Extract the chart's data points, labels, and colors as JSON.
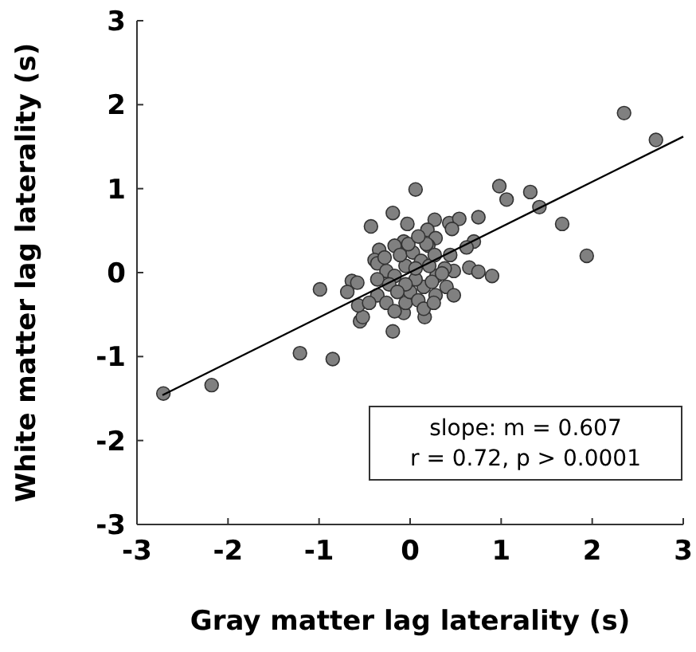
{
  "chart_data": {
    "type": "scatter",
    "xlabel": "Gray matter lag laterality (s)",
    "ylabel": "White matter lag laterality (s)",
    "xlim": [
      -3,
      3
    ],
    "xticks": [
      -3,
      -2,
      -1,
      0,
      1,
      2,
      3
    ],
    "ylim": [
      -3,
      3
    ],
    "yticks": [
      -3,
      -2,
      -1,
      0,
      1,
      2,
      3
    ],
    "grid": false,
    "marker": "circle",
    "annotations": [
      "slope: m = 0.607",
      "r = 0.72, p > 0.0001"
    ],
    "series": [
      {
        "color": "#808080",
        "x": [
          0.06,
          0.98,
          1.06,
          1.32,
          1.42,
          1.67,
          1.94,
          -0.43,
          -0.19,
          -0.03,
          0.27,
          0.43,
          0.54,
          0.75,
          0.46,
          0.19,
          0.28,
          0.2,
          -0.07,
          -0.17,
          -0.34,
          -0.39,
          0.7,
          0.62,
          0.44,
          0.65,
          0.75,
          0.9,
          0.48,
          0.38,
          0.29,
          0.4,
          0.48,
          0.28,
          0.16,
          -0.07,
          -0.19,
          -0.55,
          -0.52,
          -0.57,
          -0.64,
          -0.58,
          -0.69,
          -0.99,
          -1.21,
          -0.85,
          -2.71,
          -2.18,
          2.35,
          2.7,
          -0.36,
          -0.26,
          -0.17,
          -0.36,
          -0.23,
          -0.36,
          -0.45,
          -0.26,
          -0.17,
          -0.05,
          0.0,
          0.09,
          0.15,
          0.06,
          -0.05,
          -0.11,
          0.03,
          0.12,
          0.21,
          0.27,
          0.18,
          -0.02,
          0.06,
          0.24,
          0.35,
          -0.05,
          -0.14,
          0.15,
          0.26,
          -0.28,
          0.09
        ],
        "values": [
          0.99,
          1.03,
          0.87,
          0.96,
          0.78,
          0.58,
          0.2,
          0.55,
          0.71,
          0.58,
          0.63,
          0.59,
          0.64,
          0.66,
          0.52,
          0.51,
          0.41,
          0.32,
          0.37,
          0.32,
          0.27,
          0.15,
          0.37,
          0.3,
          0.21,
          0.06,
          0.01,
          -0.04,
          0.02,
          0.05,
          -0.04,
          -0.17,
          -0.27,
          -0.27,
          -0.53,
          -0.48,
          -0.7,
          -0.58,
          -0.53,
          -0.39,
          -0.1,
          -0.12,
          -0.23,
          -0.2,
          -0.96,
          -1.03,
          -1.44,
          -1.34,
          1.9,
          1.58,
          0.11,
          0.02,
          -0.04,
          -0.08,
          -0.14,
          -0.27,
          -0.36,
          -0.36,
          -0.46,
          -0.36,
          -0.23,
          -0.33,
          -0.17,
          -0.08,
          0.08,
          0.21,
          0.24,
          0.14,
          0.08,
          0.21,
          0.34,
          0.34,
          0.05,
          -0.11,
          -0.01,
          -0.14,
          -0.23,
          -0.43,
          -0.36,
          0.18,
          0.43
        ]
      },
      {
        "type": "line",
        "marker": "none",
        "color": "#000000",
        "x": [
          -2.72,
          3
        ],
        "values": [
          -1.46,
          1.62
        ]
      }
    ]
  }
}
